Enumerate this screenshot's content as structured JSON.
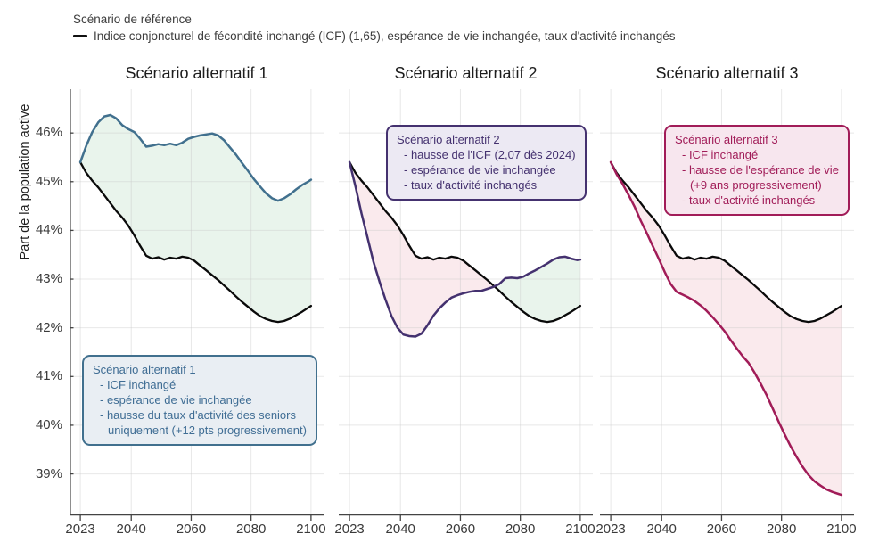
{
  "legend": {
    "title": "Scénario de référence",
    "reference_label": "Indice conjoncturel de fécondité inchangé (ICF) (1,65), espérance de vie inchangée, taux d'activité inchangés"
  },
  "y_axis_label": "Part de la population active",
  "colors": {
    "reference_line": "#0a0a0a",
    "scenario1_line": "#41708e",
    "scenario2_line": "#44316f",
    "scenario3_line": "#a11c58",
    "fill_above_reference": "#e9f4ec",
    "fill_below_reference": "#faeaed",
    "grid": "#c8c8c8",
    "spine": "#444444",
    "box1_bg": "#e9eef3",
    "box2_bg": "#ece9f3",
    "box3_bg": "#f7e6ee"
  },
  "chart_data": {
    "type": "line",
    "title": "",
    "ylabel": "Part de la population active",
    "xlim": [
      2019.4,
      2104.2
    ],
    "ylim": [
      38.15,
      46.9
    ],
    "grid": true,
    "x_ticks": [
      2023,
      2040,
      2060,
      2080,
      2100
    ],
    "y_ticks": [
      46,
      45,
      44,
      43,
      42,
      41,
      40,
      39
    ],
    "y_tick_suffix": "%",
    "x": [
      2023,
      2025,
      2027,
      2029,
      2031,
      2033,
      2035,
      2037,
      2039,
      2041,
      2043,
      2045,
      2047,
      2049,
      2051,
      2053,
      2055,
      2057,
      2059,
      2061,
      2063,
      2065,
      2067,
      2069,
      2071,
      2073,
      2075,
      2077,
      2079,
      2081,
      2083,
      2085,
      2087,
      2089,
      2091,
      2093,
      2095,
      2097,
      2099,
      2100
    ],
    "reference_series": {
      "name": "Scénario de référence",
      "values": [
        45.4,
        45.18,
        45.02,
        44.88,
        44.72,
        44.56,
        44.4,
        44.26,
        44.1,
        43.9,
        43.68,
        43.48,
        43.42,
        43.45,
        43.4,
        43.44,
        43.42,
        43.46,
        43.44,
        43.38,
        43.28,
        43.18,
        43.08,
        42.98,
        42.87,
        42.76,
        42.64,
        42.53,
        42.43,
        42.33,
        42.24,
        42.18,
        42.14,
        42.12,
        42.14,
        42.19,
        42.26,
        42.33,
        42.41,
        42.45
      ]
    },
    "panels": [
      {
        "title": "Scénario alternatif 1",
        "line_color_key": "scenario1_line",
        "series": {
          "name": "Scénario alternatif 1",
          "values": [
            45.4,
            45.74,
            46.02,
            46.22,
            46.34,
            46.37,
            46.3,
            46.16,
            46.08,
            46.02,
            45.88,
            45.72,
            45.74,
            45.77,
            45.75,
            45.78,
            45.75,
            45.8,
            45.88,
            45.92,
            45.95,
            45.97,
            45.99,
            45.95,
            45.85,
            45.7,
            45.55,
            45.38,
            45.22,
            45.05,
            44.9,
            44.76,
            44.66,
            44.61,
            44.66,
            44.74,
            44.84,
            44.93,
            45.0,
            45.04
          ]
        },
        "box": {
          "lines": [
            {
              "t": "Scénario alternatif 1",
              "i": 0
            },
            {
              "t": "- ICF inchangé",
              "i": 1
            },
            {
              "t": "- espérance de vie inchangée",
              "i": 1
            },
            {
              "t": "- hausse du taux d'activité des seniors",
              "i": 1
            },
            {
              "t": "uniquement (+12 pts progressivement)",
              "i": 2
            }
          ]
        }
      },
      {
        "title": "Scénario alternatif 2",
        "line_color_key": "scenario2_line",
        "series": {
          "name": "Scénario alternatif 2",
          "values": [
            45.4,
            44.9,
            44.35,
            43.85,
            43.35,
            42.95,
            42.58,
            42.24,
            42.0,
            41.86,
            41.83,
            41.82,
            41.88,
            42.05,
            42.25,
            42.4,
            42.52,
            42.62,
            42.67,
            42.71,
            42.74,
            42.76,
            42.76,
            42.8,
            42.84,
            42.9,
            43.02,
            43.03,
            43.02,
            43.05,
            43.12,
            43.18,
            43.25,
            43.32,
            43.4,
            43.45,
            43.46,
            43.42,
            43.39,
            43.4
          ]
        },
        "box": {
          "lines": [
            {
              "t": "Scénario alternatif 2",
              "i": 0
            },
            {
              "t": "- hausse de l'ICF (2,07 dès 2024)",
              "i": 1
            },
            {
              "t": "- espérance de vie inchangée",
              "i": 1
            },
            {
              "t": "- taux d'activité inchangés",
              "i": 1
            }
          ]
        }
      },
      {
        "title": "Scénario alternatif 3",
        "line_color_key": "scenario3_line",
        "series": {
          "name": "Scénario alternatif 3",
          "values": [
            45.4,
            45.15,
            44.95,
            44.72,
            44.48,
            44.2,
            43.95,
            43.68,
            43.42,
            43.15,
            42.9,
            42.74,
            42.68,
            42.62,
            42.55,
            42.46,
            42.35,
            42.22,
            42.08,
            41.93,
            41.75,
            41.58,
            41.42,
            41.28,
            41.08,
            40.86,
            40.62,
            40.35,
            40.08,
            39.82,
            39.57,
            39.35,
            39.15,
            38.98,
            38.85,
            38.76,
            38.68,
            38.63,
            38.59,
            38.57
          ]
        },
        "box": {
          "lines": [
            {
              "t": "Scénario alternatif 3",
              "i": 0
            },
            {
              "t": "- ICF inchangé",
              "i": 1
            },
            {
              "t": "- hausse de l'espérance de vie",
              "i": 1
            },
            {
              "t": "(+9 ans progressivement)",
              "i": 2
            },
            {
              "t": "- taux d'activité inchangés",
              "i": 1
            }
          ]
        }
      }
    ]
  }
}
